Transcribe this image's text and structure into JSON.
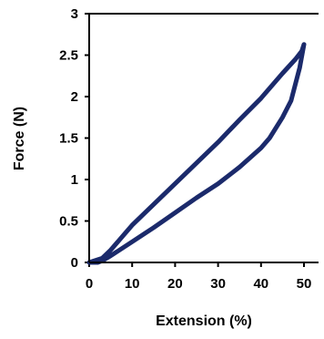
{
  "chart_data": {
    "type": "line",
    "xlabel": "Extension (%)",
    "ylabel": "Force (N)",
    "xlim": [
      0,
      50
    ],
    "ylim": [
      0,
      3
    ],
    "xticks": [
      "0",
      "10",
      "20",
      "30",
      "40",
      "50"
    ],
    "yticks": [
      "0",
      "0.5",
      "1",
      "1.5",
      "2",
      "2.5",
      "3"
    ],
    "grid": false,
    "legend": "none",
    "series": [
      {
        "color": "#1b2a6b",
        "x": [
          0,
          3,
          5,
          10,
          15,
          20,
          25,
          30,
          35,
          40,
          45,
          48,
          49.5,
          50,
          49,
          47,
          45,
          42,
          40,
          35,
          30,
          25,
          20,
          15,
          10,
          5,
          3,
          2,
          0
        ],
        "y": [
          0,
          0.05,
          0.15,
          0.45,
          0.7,
          0.95,
          1.2,
          1.45,
          1.72,
          1.98,
          2.28,
          2.45,
          2.55,
          2.63,
          2.35,
          1.95,
          1.75,
          1.5,
          1.38,
          1.15,
          0.95,
          0.78,
          0.6,
          0.42,
          0.25,
          0.08,
          0.02,
          0.0,
          0
        ]
      }
    ]
  }
}
